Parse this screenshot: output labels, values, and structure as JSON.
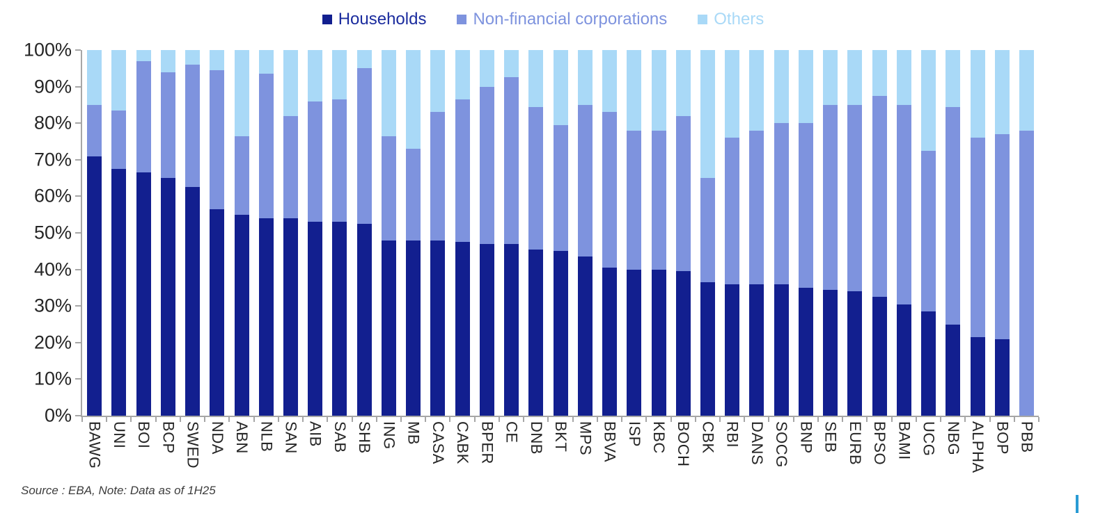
{
  "legend": {
    "items": [
      {
        "label": "Households",
        "color": "#121F8F",
        "text_color": "#1B2C9E"
      },
      {
        "label": "Non-financial corporations",
        "color": "#7E93DE",
        "text_color": "#7E93DE"
      },
      {
        "label": "Others",
        "color": "#A9D9F7",
        "text_color": "#A9D9F7"
      }
    ]
  },
  "chart_data": {
    "type": "bar",
    "subtype": "stacked-percentage",
    "title": "",
    "xlabel": "",
    "ylabel": "",
    "ylim": [
      0,
      100
    ],
    "grid": false,
    "legend_position": "top-center",
    "yticks": [
      "0%",
      "10%",
      "20%",
      "30%",
      "40%",
      "50%",
      "60%",
      "70%",
      "80%",
      "90%",
      "100%"
    ],
    "categories": [
      "BAWG",
      "UNI",
      "BOI",
      "BCP",
      "SWED",
      "NDA",
      "ABN",
      "NLB",
      "SAN",
      "AIB",
      "SAB",
      "SHB",
      "ING",
      "MB",
      "CASA",
      "CABK",
      "BPER",
      "CE",
      "DNB",
      "BKT",
      "MPS",
      "BBVA",
      "ISP",
      "KBC",
      "BOCH",
      "CBK",
      "RBI",
      "DANS",
      "SOCG",
      "BNP",
      "SEB",
      "EURB",
      "BPSO",
      "BAMI",
      "UCG",
      "NBG",
      "ALPHA",
      "BOP",
      "PBB"
    ],
    "series": [
      {
        "name": "Households",
        "color": "#121F8F",
        "values": [
          71,
          67.5,
          66.5,
          65,
          62.5,
          56.5,
          55,
          54,
          54,
          53,
          53,
          52.5,
          48,
          48,
          48,
          47.5,
          47,
          47,
          45.5,
          45,
          43.5,
          40.5,
          40,
          40,
          39.5,
          36.5,
          36,
          36,
          36,
          35,
          34.5,
          34,
          32.5,
          30.5,
          28.5,
          25,
          21.5,
          21,
          0
        ]
      },
      {
        "name": "Non-financial corporations",
        "color": "#7E93DE",
        "values": [
          14,
          16,
          30.5,
          29,
          33.5,
          38,
          21.5,
          39.5,
          28,
          33,
          33.5,
          42.5,
          28.5,
          25,
          35,
          39,
          43,
          45.5,
          39,
          34.5,
          41.5,
          42.5,
          38,
          38,
          42.5,
          28.5,
          40,
          42,
          44,
          45,
          50.5,
          51,
          55,
          54.5,
          44,
          59.5,
          54.5,
          56,
          78
        ]
      },
      {
        "name": "Others",
        "color": "#A9D9F7",
        "values": [
          15,
          16.5,
          3,
          6,
          4,
          5.5,
          23.5,
          6.5,
          18,
          14,
          13.5,
          5,
          23.5,
          27,
          17,
          13.5,
          10,
          7.5,
          15.5,
          20.5,
          15,
          17,
          22,
          22,
          18,
          35,
          24,
          22,
          20,
          20,
          15,
          15,
          12.5,
          15,
          27.5,
          15.5,
          24,
          23,
          22
        ]
      }
    ]
  },
  "footer": {
    "source_note": "Source : EBA, Note: Data as of 1H25",
    "accent_color": "#2A9BD4"
  }
}
